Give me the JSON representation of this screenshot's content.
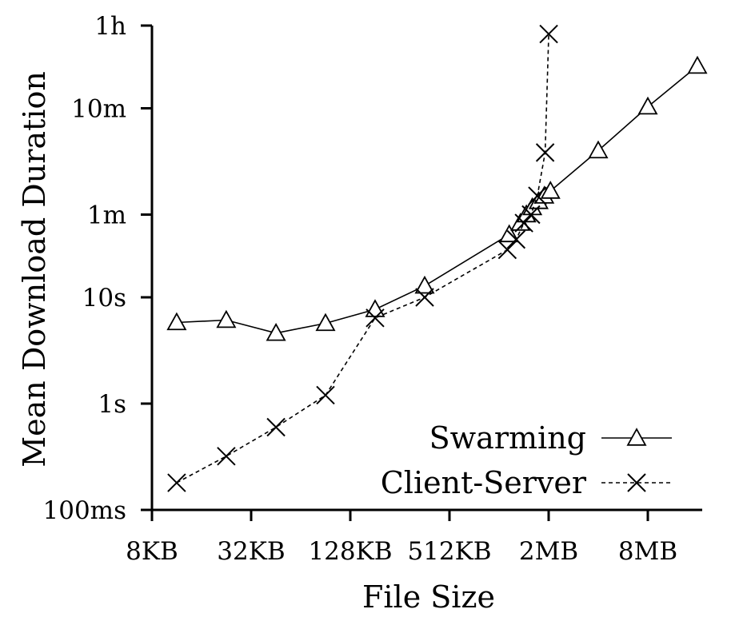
{
  "chart_data": {
    "type": "line",
    "xlabel": "File Size",
    "ylabel": "Mean Download Duration",
    "x_scale": "log2",
    "y_scale": "log10",
    "x_unit": "KB",
    "y_unit": "seconds",
    "xlim_kb": [
      4,
      20480
    ],
    "ylim_s": [
      0.1,
      3600
    ],
    "x_ticks": [
      {
        "value": 8,
        "label": "8KB"
      },
      {
        "value": 32,
        "label": "32KB"
      },
      {
        "value": 128,
        "label": "128KB"
      },
      {
        "value": 512,
        "label": "512KB"
      },
      {
        "value": 2048,
        "label": "2MB"
      },
      {
        "value": 8192,
        "label": "8MB"
      }
    ],
    "y_ticks": [
      {
        "value": 0.1,
        "label": "100ms"
      },
      {
        "value": 1,
        "label": "1s"
      },
      {
        "value": 10,
        "label": "10s"
      },
      {
        "value": 60,
        "label": "1m"
      },
      {
        "value": 600,
        "label": "10m"
      },
      {
        "value": 3600,
        "label": "1h"
      }
    ],
    "grid": false,
    "legend_position": "bottom-right",
    "series": [
      {
        "name": "Swarming",
        "marker": "triangle",
        "line_style": "solid",
        "points": [
          {
            "x": 11.3,
            "y": 5.8
          },
          {
            "x": 22.6,
            "y": 6.1
          },
          {
            "x": 45.3,
            "y": 4.6
          },
          {
            "x": 90.5,
            "y": 5.7
          },
          {
            "x": 181,
            "y": 7.7
          },
          {
            "x": 362,
            "y": 12.8
          },
          {
            "x": 1180,
            "y": 39
          },
          {
            "x": 1380,
            "y": 50
          },
          {
            "x": 1500,
            "y": 60
          },
          {
            "x": 1630,
            "y": 70
          },
          {
            "x": 1780,
            "y": 80
          },
          {
            "x": 1930,
            "y": 90
          },
          {
            "x": 2100,
            "y": 100
          },
          {
            "x": 4096,
            "y": 240
          },
          {
            "x": 8192,
            "y": 620
          },
          {
            "x": 16384,
            "y": 1500
          }
        ]
      },
      {
        "name": "Client-Server",
        "marker": "x",
        "line_style": "dashed",
        "points": [
          {
            "x": 11.3,
            "y": 0.18
          },
          {
            "x": 22.6,
            "y": 0.32
          },
          {
            "x": 45.3,
            "y": 0.6
          },
          {
            "x": 90.5,
            "y": 1.2
          },
          {
            "x": 181,
            "y": 6.4
          },
          {
            "x": 362,
            "y": 10
          },
          {
            "x": 1150,
            "y": 28
          },
          {
            "x": 1300,
            "y": 35
          },
          {
            "x": 1450,
            "y": 50
          },
          {
            "x": 1600,
            "y": 60
          },
          {
            "x": 1750,
            "y": 90
          },
          {
            "x": 1950,
            "y": 230
          },
          {
            "x": 2050,
            "y": 3000
          }
        ]
      }
    ]
  }
}
